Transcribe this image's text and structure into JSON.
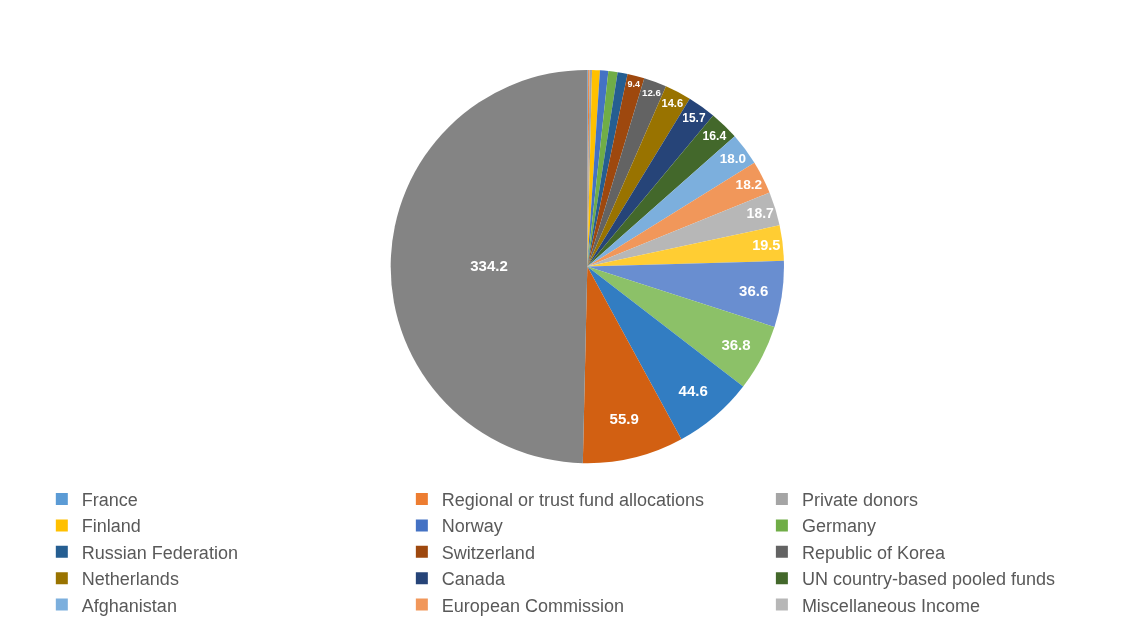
{
  "chart_data": {
    "type": "pie",
    "categories": [
      "France",
      "Regional or trust fund allocations",
      "Private donors",
      "Finland",
      "Norway",
      "Germany",
      "Russian Federation",
      "Switzerland",
      "Republic of Korea",
      "Netherlands",
      "Canada",
      "UN country-based pooled funds",
      "Afghanistan",
      "European Commission",
      "Miscellaneous Income",
      null,
      null,
      null,
      null,
      null,
      null
    ],
    "values": [
      0.5,
      0.7,
      1.4,
      4.3,
      4.6,
      5.1,
      5.5,
      9.4,
      12.6,
      14.6,
      15.7,
      16.4,
      18.0,
      18.2,
      18.7,
      19.5,
      36.6,
      36.8,
      44.6,
      55.9,
      334.2
    ],
    "value_labels": [
      null,
      null,
      null,
      null,
      null,
      null,
      null,
      "9.4",
      "12.6",
      "14.6",
      "15.7",
      "16.4",
      "18.0",
      "18.2",
      "18.7",
      "19.5",
      "36.6",
      "36.8",
      "44.6",
      "55.9",
      "334.2"
    ],
    "colors": [
      "#5b9bd5",
      "#ed7d31",
      "#a5a5a5",
      "#ffc000",
      "#4472c4",
      "#70ad47",
      "#255e91",
      "#9e480e",
      "#636363",
      "#997300",
      "#264478",
      "#43682b",
      "#7cafdd",
      "#f1975a",
      "#b7b7b7",
      "#ffcd33",
      "#698ed0",
      "#8cc168",
      "#327dc2",
      "#d26012",
      "#848484"
    ],
    "legend": "bottom"
  }
}
